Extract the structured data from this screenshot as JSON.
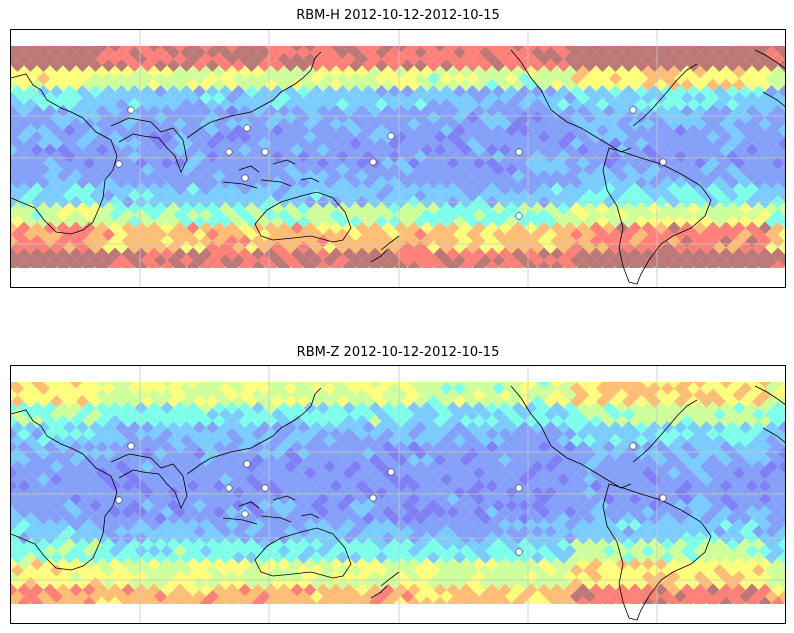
{
  "panels": [
    {
      "id": "rbm-h",
      "title": "RBM-H 2012-10-12-2012-10-15",
      "field_levels": {
        "description_bands": "per latitude band from north to south, relative intensity 0..1",
        "bands": [
          0.95,
          0.55,
          0.25,
          0.15,
          0.12,
          0.12,
          0.15,
          0.25,
          0.45,
          0.75,
          0.95
        ]
      }
    },
    {
      "id": "rbm-z",
      "title": "RBM-Z 2012-10-12-2012-10-15",
      "field_levels": {
        "description_bands": "per latitude band from north to south, relative intensity 0..1",
        "bands": [
          0.55,
          0.35,
          0.2,
          0.12,
          0.1,
          0.1,
          0.12,
          0.2,
          0.35,
          0.55,
          0.75
        ]
      }
    }
  ],
  "colormap": [
    "#6a6af5",
    "#6f8ff7",
    "#63c3ff",
    "#66ffe6",
    "#c6ff8a",
    "#ffff66",
    "#ffb25e",
    "#ff6a60",
    "#b0605e"
  ]
}
